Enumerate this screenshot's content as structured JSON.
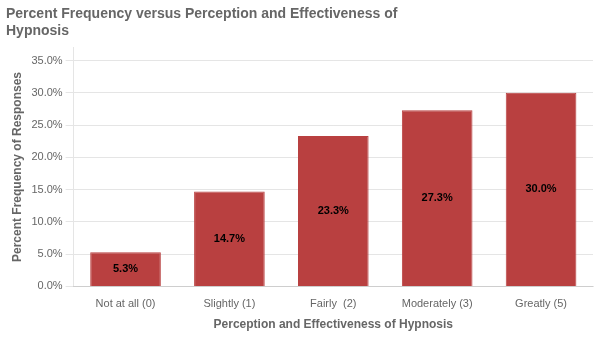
{
  "chart_data": {
    "type": "bar",
    "title": "Percent Frequency versus Perception and Effectiveness of\nHypnosis",
    "xlabel": "Perception and Effectiveness of Hypnosis",
    "ylabel": "Percent Frequency of Responses",
    "categories": [
      "Not at all (0)",
      "Slightly (1)",
      "Fairly  (2)",
      "Moderately (3)",
      "Greatly (5)"
    ],
    "values": [
      5.3,
      14.7,
      23.3,
      27.3,
      30.0
    ],
    "value_labels": [
      "5.3%",
      "14.7%",
      "23.3%",
      "27.3%",
      "30.0%"
    ],
    "data_labels": true,
    "color": "#b94040",
    "ylim": [
      0,
      37
    ],
    "yticks": [
      {
        "value": 0,
        "label": "0.0%"
      },
      {
        "value": 5,
        "label": "5.0%"
      },
      {
        "value": 10,
        "label": "10.0%"
      },
      {
        "value": 15,
        "label": "15.0%"
      },
      {
        "value": 20,
        "label": "20.0%"
      },
      {
        "value": 25,
        "label": "25.0%"
      },
      {
        "value": 30,
        "label": "30.0%"
      },
      {
        "value": 35,
        "label": "35.0%"
      }
    ],
    "grid": true
  }
}
